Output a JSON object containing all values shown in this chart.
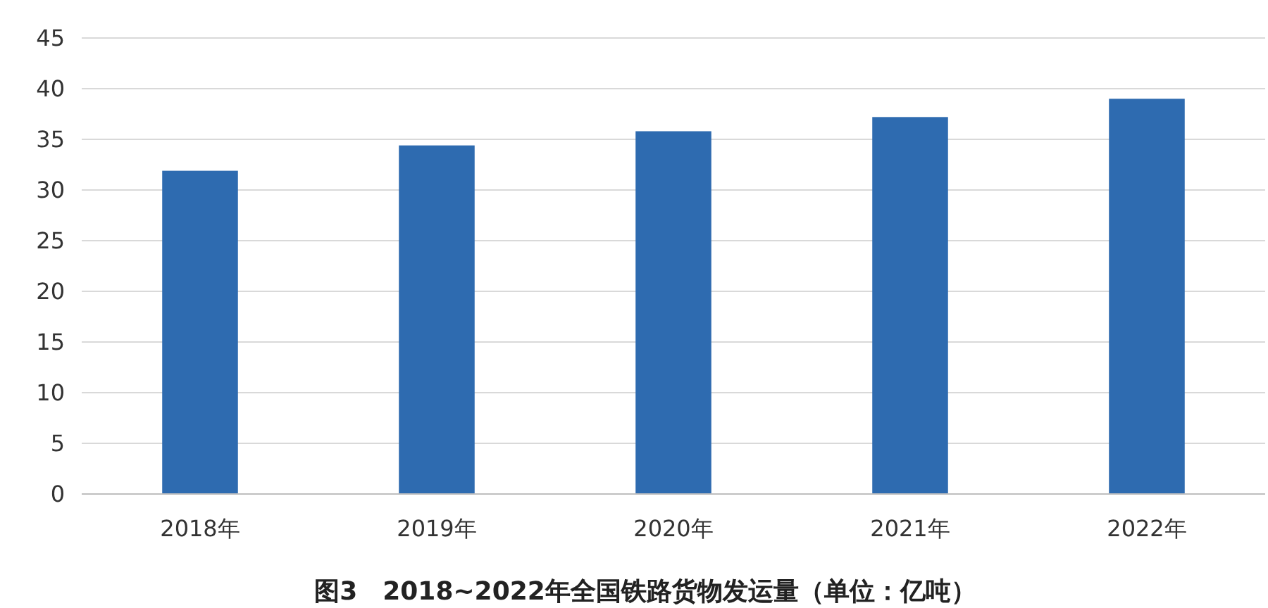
{
  "chart_data": {
    "type": "bar",
    "title": "图3　2018~2022年全国铁路货物发运量（单位：亿吨）",
    "categories": [
      "2018年",
      "2019年",
      "2020年",
      "2021年",
      "2022年"
    ],
    "values": [
      31.9,
      34.4,
      35.8,
      37.2,
      39.0
    ],
    "color": "#2e6bb0",
    "ylim": [
      0,
      45
    ],
    "yticks": [
      0,
      5,
      10,
      15,
      20,
      25,
      30,
      35,
      40,
      45
    ],
    "grid": "y"
  }
}
